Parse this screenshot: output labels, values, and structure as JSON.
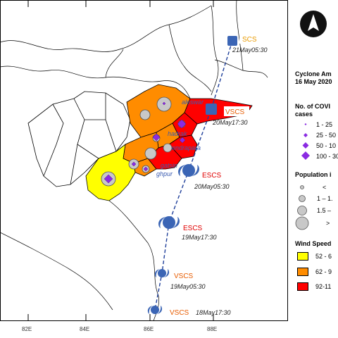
{
  "legend": {
    "title_line1": "Cyclone Am",
    "title_line2": "16 May 2020",
    "covid_title_line1": "No. of COVI",
    "covid_title_line2": "cases",
    "covid_items": [
      "1 - 25",
      "25 - 50",
      "50 - 10",
      "100 - 30"
    ],
    "pop_title": "Population i",
    "pop_items": [
      "<",
      "1 – 1.",
      "1.5 –",
      ">"
    ],
    "wind_title": "Wind Speed",
    "wind_items": [
      {
        "label": "52 - 6",
        "color": "#ffff00"
      },
      {
        "label": "62 - 9",
        "color": "#ff8c00"
      },
      {
        "label": "92-11",
        "color": "#ff0000"
      }
    ]
  },
  "axis": {
    "ticks": [
      "82E",
      "84E",
      "86E",
      "88E"
    ]
  },
  "track": [
    {
      "category": "SCS",
      "time": "21May05:30",
      "color": "#e89a00"
    },
    {
      "category": "VSCS",
      "time": "20May17:30",
      "color": "#e85c00"
    },
    {
      "category": "ESCS",
      "time": "20May05:30",
      "color": "#e00000"
    },
    {
      "category": "ESCS",
      "time": "19May17:30",
      "color": "#e00000"
    },
    {
      "category": "VSCS",
      "time": "19May05:30",
      "color": "#e85c00"
    },
    {
      "category": "VSCS",
      "time": "18May17:30",
      "color": "#e85c00"
    }
  ],
  "towns": [
    "aleswar",
    "hadrak",
    "endrapara",
    "gatsin",
    "ghpur"
  ],
  "colors": {
    "yellow": "#ffff00",
    "orange": "#ff8c00",
    "red": "#ff0000",
    "track": "#1f3f9a",
    "cyclone_icon": "#3b65b5"
  },
  "icons": [
    "north-arrow-icon",
    "cyclone-icon"
  ]
}
